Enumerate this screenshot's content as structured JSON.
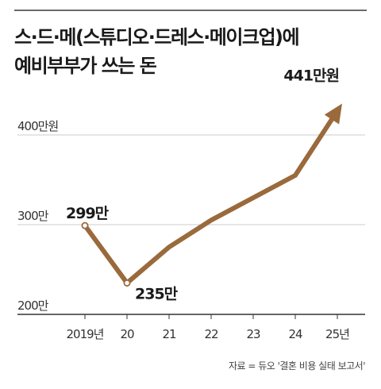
{
  "title_lines": [
    "스·드·메(스튜디오·드레스·메이크업)에",
    "예비부부가 쓰는 돈"
  ],
  "source": "자료 = 듀오 '결혼 비용 실태 보고서'",
  "colors": {
    "line": "#9a6a3c",
    "grid": "#cccccc",
    "axis": "#333333",
    "title_rule": "#6b6b6b"
  },
  "chart_data": {
    "type": "line",
    "title": "스·드·메(스튜디오·드레스·메이크업)에 예비부부가 쓰는 돈",
    "categories": [
      "2019년",
      "20",
      "21",
      "22",
      "23",
      "24",
      "25년"
    ],
    "series": [
      {
        "values": [
          299,
          235,
          275,
          305,
          330,
          355,
          441
        ]
      }
    ],
    "unit": "만원",
    "ylim": [
      200,
      420
    ],
    "yticks": [
      200,
      300,
      400
    ],
    "ytick_labels": [
      "200만",
      "300만",
      "400만원"
    ],
    "data_labels": [
      {
        "index": 0,
        "text": "299만"
      },
      {
        "index": 1,
        "text": "235만"
      },
      {
        "index": 6,
        "text": "441만원"
      }
    ],
    "grid": true,
    "legend": "none"
  }
}
